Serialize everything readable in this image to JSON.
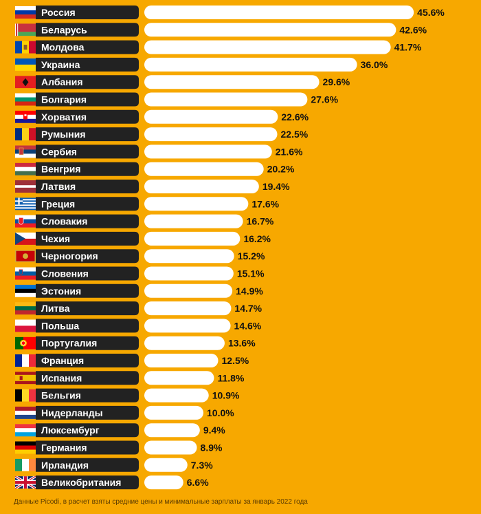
{
  "chart_data": {
    "type": "bar",
    "orientation": "horizontal",
    "categories": [
      "Россия",
      "Беларусь",
      "Молдова",
      "Украина",
      "Албания",
      "Болгария",
      "Хорватия",
      "Румыния",
      "Сербия",
      "Венгрия",
      "Латвия",
      "Греция",
      "Словакия",
      "Чехия",
      "Черногория",
      "Словения",
      "Эстония",
      "Литва",
      "Польша",
      "Португалия",
      "Франция",
      "Испания",
      "Бельгия",
      "Нидерланды",
      "Люксембург",
      "Германия",
      "Ирландия",
      "Великобритания"
    ],
    "values": [
      45.6,
      42.6,
      41.7,
      36.0,
      29.6,
      27.6,
      22.6,
      22.5,
      21.6,
      20.2,
      19.4,
      17.6,
      16.7,
      16.2,
      15.2,
      15.1,
      14.9,
      14.7,
      14.6,
      13.6,
      12.5,
      11.8,
      10.9,
      10.0,
      9.4,
      8.9,
      7.3,
      6.6
    ],
    "value_labels": [
      "45.6%",
      "42.6%",
      "41.7%",
      "36.0%",
      "29.6%",
      "27.6%",
      "22.6%",
      "22.5%",
      "21.6%",
      "20.2%",
      "19.4%",
      "17.6%",
      "16.7%",
      "16.2%",
      "15.2%",
      "15.1%",
      "14.9%",
      "14.7%",
      "14.6%",
      "13.6%",
      "12.5%",
      "11.8%",
      "10.9%",
      "10.0%",
      "9.4%",
      "8.9%",
      "7.3%",
      "6.6%"
    ],
    "flag_icons": [
      "russia-flag-icon",
      "belarus-flag-icon",
      "moldova-flag-icon",
      "ukraine-flag-icon",
      "albania-flag-icon",
      "bulgaria-flag-icon",
      "croatia-flag-icon",
      "romania-flag-icon",
      "serbia-flag-icon",
      "hungary-flag-icon",
      "latvia-flag-icon",
      "greece-flag-icon",
      "slovakia-flag-icon",
      "czechia-flag-icon",
      "montenegro-flag-icon",
      "slovenia-flag-icon",
      "estonia-flag-icon",
      "lithuania-flag-icon",
      "poland-flag-icon",
      "portugal-flag-icon",
      "france-flag-icon",
      "spain-flag-icon",
      "belgium-flag-icon",
      "netherlands-flag-icon",
      "luxembourg-flag-icon",
      "germany-flag-icon",
      "ireland-flag-icon",
      "uk-flag-icon"
    ],
    "colors": {
      "background": "#F7A800",
      "bar": "#FFFFFF",
      "label_box": "#222222",
      "label_text": "#FFFFFF",
      "value_text": "#111111"
    },
    "title": "",
    "xlabel": "",
    "ylabel": "",
    "xlim": [
      0,
      50
    ],
    "grid": false,
    "legend": "none"
  },
  "footnote": "Данные Picodi, в расчет взяты средние цены и минимальные зарплаты за январь 2022 года"
}
